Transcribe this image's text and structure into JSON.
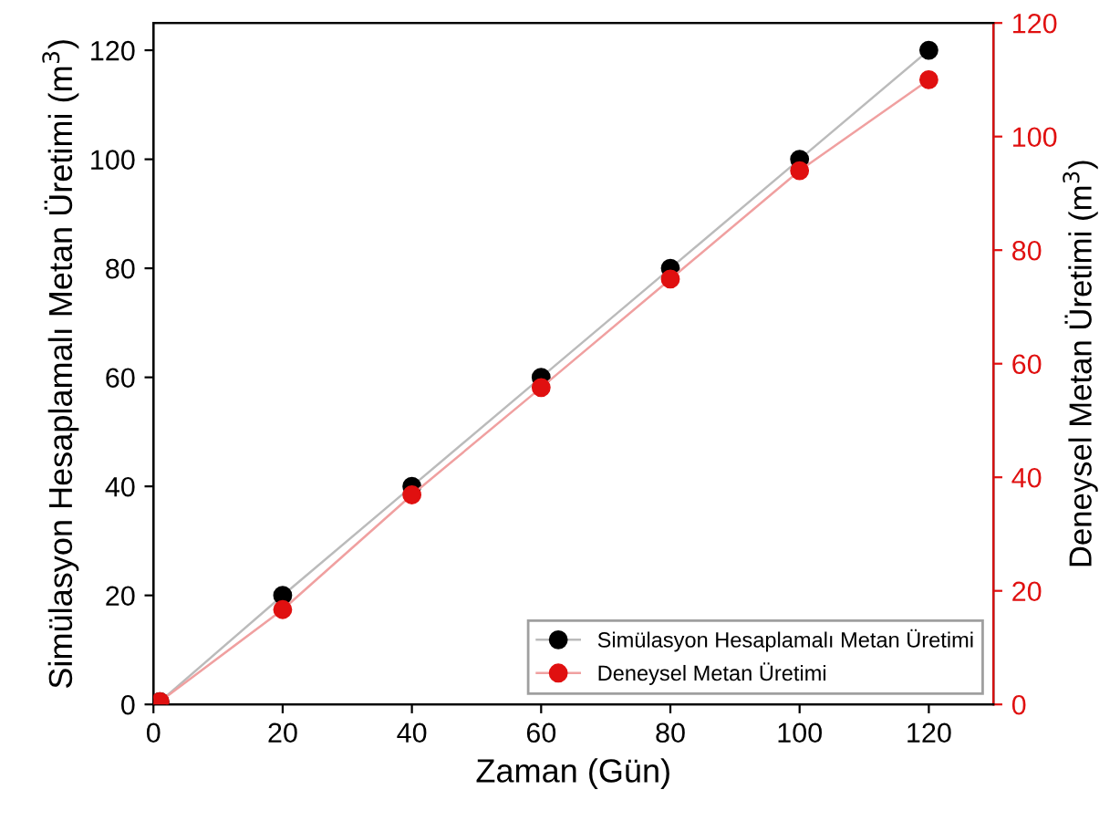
{
  "chart_data": {
    "type": "line",
    "xlabel": "Zaman (Gün)",
    "ylabel": "Simülasyon Hesaplamalı Metan Üretimi (m$^{3}$)",
    "y2label": "Deneysel Metan Üretimi (m$^{3}$)",
    "x": [
      1,
      20,
      40,
      60,
      80,
      100,
      120
    ],
    "series": [
      {
        "name": "Simülasyon Hesaplamalı Metan Üretimi",
        "color": "#000000",
        "values": [
          0.5,
          20,
          40,
          60,
          80,
          100,
          120
        ]
      },
      {
        "name": "Deneysel Metan Üretimi",
        "color": "#e01010",
        "axis": "y2",
        "values": [
          0.5,
          16.7,
          36.9,
          55.8,
          74.9,
          94,
          110
        ]
      }
    ],
    "xlim": [
      0,
      130
    ],
    "xticks": [
      0,
      20,
      40,
      60,
      80,
      100,
      120
    ],
    "ylim": [
      0,
      125
    ],
    "yticks": [
      0,
      20,
      40,
      60,
      80,
      100,
      120
    ],
    "y2lim": [
      0,
      120
    ],
    "y2ticks": [
      0,
      20,
      40,
      60,
      80,
      100,
      120
    ],
    "marker": "circle",
    "legend": "bottom right",
    "grid": false
  }
}
